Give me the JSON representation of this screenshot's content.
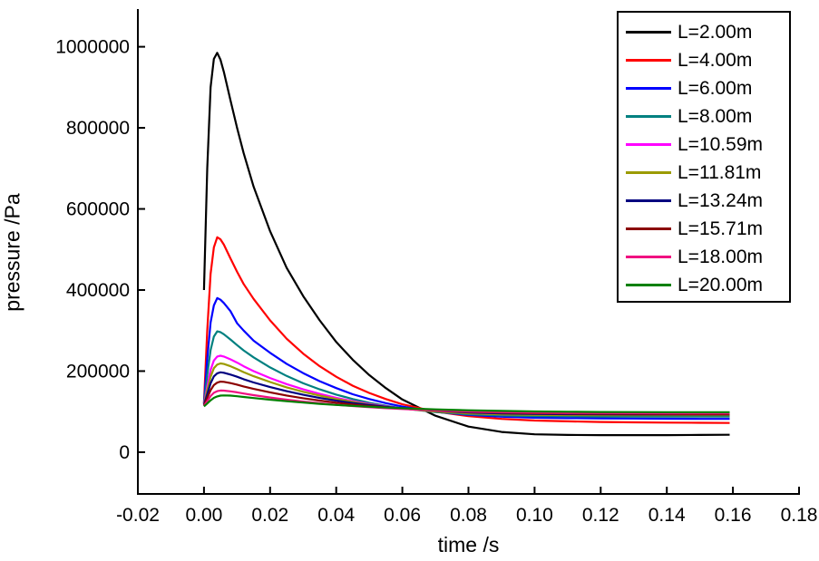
{
  "figure": {
    "xlabel": "time /s",
    "ylabel": "pressure /Pa",
    "background_color": "#ffffff",
    "axis_color": "#000000"
  },
  "chart_data": {
    "type": "line",
    "title": "",
    "xlabel": "time /s",
    "ylabel": "pressure /Pa",
    "grid": false,
    "legend_position": "top-right",
    "xlim": [
      -0.02,
      0.18
    ],
    "ylim": [
      -103000,
      1093000
    ],
    "xticks": [
      -0.02,
      0.0,
      0.02,
      0.04,
      0.06,
      0.08,
      0.1,
      0.12,
      0.14,
      0.16,
      0.18
    ],
    "xtick_labels": [
      "-0.02",
      "0.00",
      "0.02",
      "0.04",
      "0.06",
      "0.08",
      "0.10",
      "0.12",
      "0.14",
      "0.16",
      "0.18"
    ],
    "yticks": [
      0,
      200000,
      400000,
      600000,
      800000,
      1000000
    ],
    "ytick_labels": [
      "0",
      "200000",
      "400000",
      "600000",
      "800000",
      "1000000"
    ],
    "x": [
      0,
      0.001,
      0.002,
      0.003,
      0.004,
      0.005,
      0.006,
      0.008,
      0.01,
      0.012,
      0.015,
      0.02,
      0.025,
      0.03,
      0.035,
      0.04,
      0.045,
      0.05,
      0.055,
      0.06,
      0.07,
      0.08,
      0.09,
      0.1,
      0.11,
      0.12,
      0.13,
      0.14,
      0.15,
      0.159
    ],
    "series": [
      {
        "name": "L=2.00m",
        "color": "#000000",
        "values": [
          400000,
          700000,
          900000,
          970000,
          985000,
          968000,
          938000,
          868000,
          800000,
          738000,
          655000,
          545000,
          455000,
          385000,
          325000,
          272000,
          228000,
          190000,
          158000,
          130000,
          90000,
          63000,
          50000,
          44000,
          42500,
          42000,
          42000,
          42000,
          42500,
          43000
        ]
      },
      {
        "name": "L=4.00m",
        "color": "#FF0000",
        "values": [
          122000,
          300000,
          440000,
          505000,
          530000,
          525000,
          512000,
          478000,
          445000,
          415000,
          378000,
          325000,
          280000,
          243000,
          212000,
          186000,
          164000,
          146000,
          131000,
          118000,
          100000,
          89000,
          82000,
          78000,
          76000,
          74500,
          73500,
          73000,
          72500,
          72000
        ]
      },
      {
        "name": "L=6.00m",
        "color": "#0000FF",
        "values": [
          120000,
          230000,
          320000,
          362000,
          380000,
          376000,
          368000,
          348000,
          318000,
          300000,
          275000,
          245000,
          218000,
          195000,
          175000,
          158000,
          143000,
          131000,
          121000,
          112500,
          99500,
          92000,
          87500,
          85000,
          84000,
          83500,
          83000,
          82500,
          82000,
          82000
        ]
      },
      {
        "name": "L=8.00m",
        "color": "#008080",
        "values": [
          119000,
          190000,
          252000,
          285000,
          298000,
          296000,
          291000,
          278000,
          264000,
          251000,
          234000,
          209000,
          188000,
          170000,
          155000,
          142000,
          131000,
          122000,
          114500,
          108000,
          99000,
          93500,
          90500,
          89000,
          88500,
          88000,
          88000,
          88000,
          88000,
          88000
        ]
      },
      {
        "name": "L=10.59m",
        "color": "#FF00FF",
        "values": [
          118000,
          162000,
          203000,
          226000,
          236000,
          238000,
          236000,
          229000,
          221000,
          212000,
          200000,
          183000,
          168000,
          155000,
          144000,
          134000,
          126000,
          119000,
          113000,
          108000,
          100500,
          96000,
          93500,
          92500,
          92000,
          92000,
          92000,
          92000,
          92000,
          92000
        ]
      },
      {
        "name": "L=11.81m",
        "color": "#9B9B00",
        "values": [
          117000,
          152000,
          186000,
          207000,
          216000,
          219000,
          217500,
          212000,
          205000,
          197500,
          187500,
          173000,
          160000,
          149000,
          139500,
          131000,
          124000,
          117500,
          112000,
          107500,
          100500,
          96000,
          93500,
          92000,
          91500,
          91000,
          91000,
          91000,
          91000,
          91000
        ]
      },
      {
        "name": "L=13.24m",
        "color": "#000080",
        "values": [
          116000,
          143000,
          170000,
          187000,
          194500,
          197000,
          196000,
          191500,
          186000,
          180000,
          172000,
          160500,
          150500,
          141500,
          133800,
          127000,
          121200,
          116200,
          111800,
          108200,
          102300,
          98300,
          95800,
          94400,
          93700,
          93300,
          93100,
          93000,
          93000,
          93000
        ]
      },
      {
        "name": "L=15.71m",
        "color": "#8B0000",
        "values": [
          115000,
          134000,
          153000,
          165500,
          171500,
          174000,
          173500,
          170500,
          166500,
          162200,
          156200,
          147500,
          139800,
          133000,
          127200,
          122000,
          117600,
          113700,
          110400,
          107500,
          103000,
          99800,
          97500,
          96100,
          95300,
          94800,
          94400,
          94200,
          94000,
          94000
        ]
      },
      {
        "name": "L=18.00m",
        "color": "#F01080",
        "values": [
          114000,
          126000,
          138500,
          146500,
          150500,
          152000,
          151800,
          150000,
          147500,
          144700,
          140700,
          134800,
          129500,
          124800,
          120700,
          117000,
          113800,
          111000,
          108500,
          106400,
          103000,
          100500,
          98700,
          97500,
          96800,
          96400,
          96200,
          96000,
          96000,
          96000
        ]
      },
      {
        "name": "L=20.00m",
        "color": "#008000",
        "values": [
          113000,
          120000,
          128000,
          134000,
          137500,
          139500,
          140000,
          139500,
          138000,
          136200,
          133500,
          129400,
          125700,
          122300,
          119300,
          116600,
          114200,
          112000,
          110100,
          108400,
          105600,
          103400,
          101700,
          100500,
          99700,
          99200,
          98800,
          98600,
          98500,
          98500
        ]
      }
    ]
  }
}
